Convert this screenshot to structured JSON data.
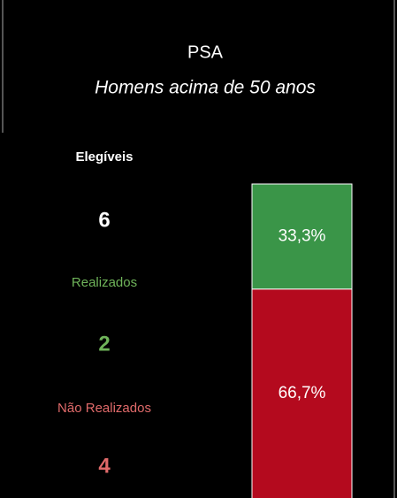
{
  "chart_data": {
    "type": "stacked_bar",
    "title": "PSA",
    "subtitle": "Homens acima de 50 anos",
    "kpis": [
      {
        "label": "Elegíveis",
        "value": 6,
        "color": "#ffffff"
      },
      {
        "label": "Realizados",
        "value": 2,
        "color": "#6fb45a"
      },
      {
        "label": "Não Realizados",
        "value": 4,
        "color": "#e06a6a"
      }
    ],
    "ylim": [
      0,
      100
    ],
    "series": [
      {
        "name": "Realizados",
        "color": "#3a9548",
        "values": [
          33.3
        ],
        "value_labels": [
          "33,3%"
        ]
      },
      {
        "name": "Não Realizados",
        "color": "#b40a1e",
        "values": [
          66.7
        ],
        "value_labels": [
          "66,7%"
        ]
      }
    ]
  }
}
